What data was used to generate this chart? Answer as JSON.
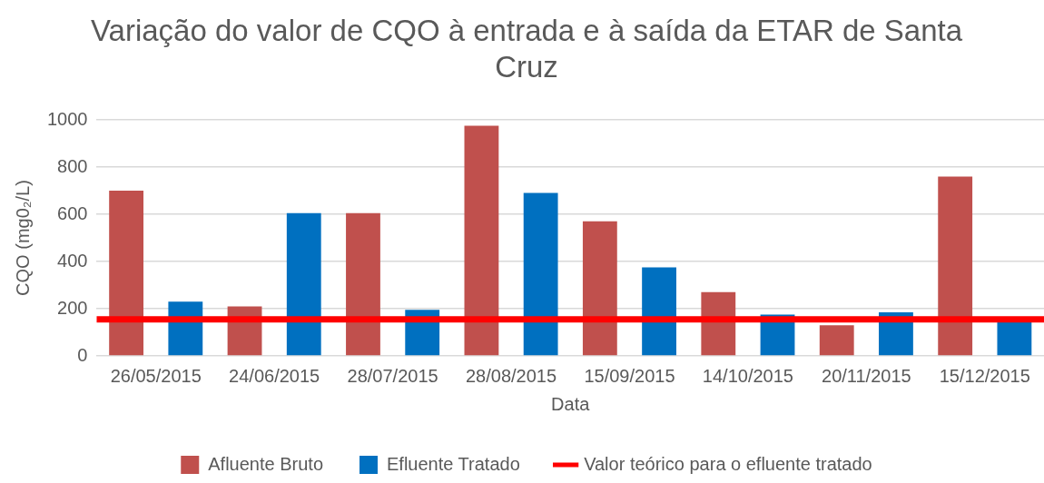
{
  "chart_data": {
    "type": "bar",
    "title": "Variação do valor de CQO à entrada e à saída da ETAR de Santa Cruz",
    "xlabel": "Data",
    "ylabel": "CQO (mg0₂/L)",
    "categories": [
      "26/05/2015",
      "24/06/2015",
      "28/07/2015",
      "28/08/2015",
      "15/09/2015",
      "14/10/2015",
      "20/11/2015",
      "15/12/2015"
    ],
    "series": [
      {
        "name": "Afluente Bruto",
        "color": "#c0504d",
        "values": [
          700,
          210,
          605,
          975,
          570,
          270,
          130,
          760
        ]
      },
      {
        "name": "Efluente Tratado",
        "color": "#0070c0",
        "values": [
          230,
          605,
          195,
          690,
          375,
          175,
          185,
          150
        ]
      }
    ],
    "ref_lines": [
      {
        "axis": "y",
        "value": 155,
        "label": "Valor teórico para o efluente tratado",
        "color": "#ff0000"
      }
    ],
    "ylim": [
      0,
      1000
    ],
    "yticks": [
      0,
      200,
      400,
      600,
      800,
      1000
    ],
    "grid": "y",
    "legend": "bottom"
  }
}
